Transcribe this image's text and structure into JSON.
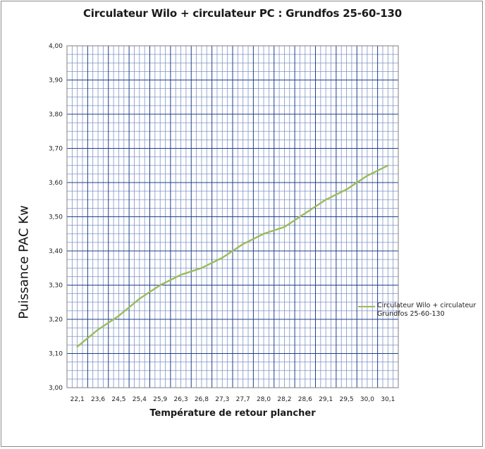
{
  "chart_data": {
    "type": "line",
    "title": "Circulateur Wilo + circulateur PC : Grundfos 25-60-130",
    "xlabel": "Température de retour plancher",
    "ylabel": "Puissance PAC Kw",
    "categories": [
      "22,1",
      "23,6",
      "24,5",
      "25,4",
      "25,9",
      "26,3",
      "26,8",
      "27,3",
      "27,7",
      "28,0",
      "28,2",
      "28,6",
      "29,1",
      "29,5",
      "30,0",
      "30,1"
    ],
    "yticks": [
      "3,00",
      "3,10",
      "3,20",
      "3,30",
      "3,40",
      "3,50",
      "3,60",
      "3,70",
      "3,80",
      "3,90",
      "4,00"
    ],
    "ylim": [
      3.0,
      4.0
    ],
    "series": [
      {
        "name": "Circulateur Wilo + circulateur Grundfos 25-60-130",
        "color": "#9bbb59",
        "values": [
          3.12,
          3.17,
          3.21,
          3.26,
          3.3,
          3.33,
          3.35,
          3.38,
          3.42,
          3.45,
          3.47,
          3.51,
          3.55,
          3.58,
          3.62,
          3.65
        ]
      }
    ],
    "grid": true,
    "legend_position": "right"
  },
  "legend": {
    "label": "Circulateur Wilo + circulateur Grundfos 25-60-130"
  }
}
